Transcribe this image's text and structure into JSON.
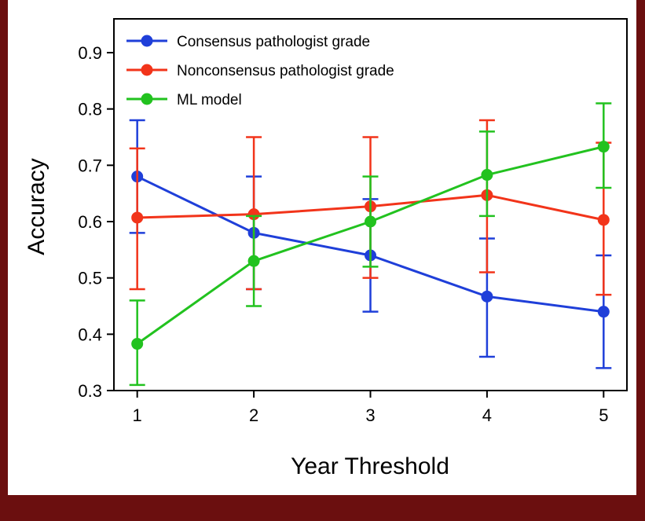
{
  "chart_data": {
    "type": "line",
    "title": "",
    "xlabel": "Year Threshold",
    "ylabel": "Accuracy",
    "x": [
      1,
      2,
      3,
      4,
      5
    ],
    "x_ticks": [
      "1",
      "2",
      "3",
      "4",
      "5"
    ],
    "y_ticks": [
      "0.3",
      "0.4",
      "0.5",
      "0.6",
      "0.7",
      "0.8",
      "0.9"
    ],
    "xlim": [
      0.8,
      5.2
    ],
    "ylim": [
      0.3,
      0.96
    ],
    "grid": false,
    "legend_position": "top-left",
    "series": [
      {
        "name": "Consensus pathologist grade",
        "color": "#1f3fd9",
        "values": [
          0.68,
          0.58,
          0.54,
          0.467,
          0.44
        ],
        "err_low": [
          0.58,
          0.48,
          0.44,
          0.36,
          0.34
        ],
        "err_high": [
          0.78,
          0.68,
          0.64,
          0.57,
          0.54
        ]
      },
      {
        "name": "Nonconsensus pathologist grade",
        "color": "#f2341a",
        "values": [
          0.607,
          0.613,
          0.627,
          0.647,
          0.603
        ],
        "err_low": [
          0.48,
          0.48,
          0.5,
          0.51,
          0.47
        ],
        "err_high": [
          0.73,
          0.75,
          0.75,
          0.78,
          0.74
        ]
      },
      {
        "name": "ML model",
        "color": "#22c21f",
        "values": [
          0.383,
          0.53,
          0.6,
          0.683,
          0.733
        ],
        "err_low": [
          0.31,
          0.45,
          0.52,
          0.61,
          0.66
        ],
        "err_high": [
          0.46,
          0.61,
          0.68,
          0.76,
          0.81
        ]
      }
    ]
  }
}
